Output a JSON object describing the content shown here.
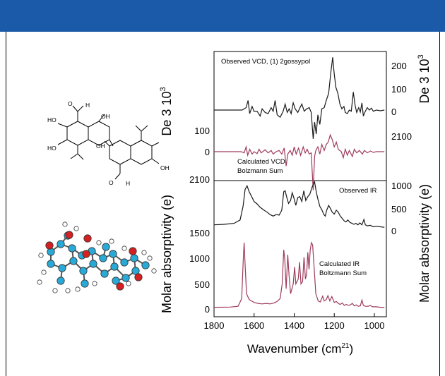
{
  "colors": {
    "banner": "#1a5aa8",
    "observed": "#1a1a1a",
    "calculated": "#9e3b5a",
    "atom_carbon": "#29a9d6",
    "atom_oxygen": "#d42020",
    "atom_hydrogen": "#ffffff"
  },
  "molecule": {
    "structure_atom_labels": [
      "HO",
      "HO",
      "O",
      "H",
      "OH",
      "OH",
      "OH",
      "O",
      "H"
    ]
  },
  "chart_data": {
    "type": "line",
    "x_axis": {
      "label": "Wavenumber (cm",
      "label_sup": "21",
      "label_close": ")",
      "ticks": [
        "1800",
        "1600",
        "1400",
        "1200",
        "1000"
      ],
      "range": [
        1800,
        940
      ],
      "reversed": true
    },
    "left_axes": {
      "vcd_label": "De 3 10",
      "vcd_label_sup": "3",
      "vcd_ticks": [
        "100",
        "0",
        "2100"
      ],
      "ir_label": "Molar absorptivity (e)",
      "ir_ticks": [
        "1500",
        "1000",
        "500",
        "0"
      ]
    },
    "right_axes": {
      "vcd_label": "De 3 10",
      "vcd_label_sup": "3",
      "vcd_ticks": [
        "200",
        "100",
        "0",
        "2100"
      ],
      "ir_label": "Molar absorptivity (e)",
      "ir_ticks": [
        "1000",
        "500",
        "0"
      ]
    },
    "panels": [
      {
        "name": "Observed VCD, (1) 2gossypol",
        "points": [
          [
            1800,
            0
          ],
          [
            1660,
            0
          ],
          [
            1640,
            10
          ],
          [
            1630,
            40
          ],
          [
            1622,
            -15
          ],
          [
            1610,
            15
          ],
          [
            1600,
            -6
          ],
          [
            1585,
            -5
          ],
          [
            1570,
            -25
          ],
          [
            1560,
            5
          ],
          [
            1545,
            -10
          ],
          [
            1530,
            -15
          ],
          [
            1515,
            10
          ],
          [
            1505,
            -5
          ],
          [
            1495,
            40
          ],
          [
            1485,
            -20
          ],
          [
            1470,
            -30
          ],
          [
            1455,
            -5
          ],
          [
            1445,
            25
          ],
          [
            1435,
            -10
          ],
          [
            1425,
            5
          ],
          [
            1415,
            -15
          ],
          [
            1405,
            30
          ],
          [
            1395,
            5
          ],
          [
            1382,
            -10
          ],
          [
            1372,
            8
          ],
          [
            1362,
            25
          ],
          [
            1350,
            -5
          ],
          [
            1338,
            5
          ],
          [
            1325,
            10
          ],
          [
            1315,
            -10
          ],
          [
            1305,
            -120
          ],
          [
            1298,
            -50
          ],
          [
            1290,
            -100
          ],
          [
            1282,
            -20
          ],
          [
            1272,
            -60
          ],
          [
            1262,
            5
          ],
          [
            1250,
            10
          ],
          [
            1240,
            40
          ],
          [
            1228,
            70
          ],
          [
            1218,
            150
          ],
          [
            1208,
            220
          ],
          [
            1200,
            150
          ],
          [
            1192,
            95
          ],
          [
            1182,
            70
          ],
          [
            1172,
            25
          ],
          [
            1162,
            5
          ],
          [
            1152,
            15
          ],
          [
            1145,
            -10
          ],
          [
            1135,
            -15
          ],
          [
            1125,
            0
          ],
          [
            1115,
            -5
          ],
          [
            1105,
            75
          ],
          [
            1096,
            20
          ],
          [
            1088,
            -10
          ],
          [
            1078,
            10
          ],
          [
            1070,
            -8
          ],
          [
            1062,
            30
          ],
          [
            1055,
            -25
          ],
          [
            1045,
            -5
          ],
          [
            1035,
            10
          ],
          [
            1025,
            0
          ],
          [
            1015,
            8
          ],
          [
            1005,
            -5
          ],
          [
            990,
            0
          ],
          [
            970,
            -3
          ],
          [
            950,
            0
          ]
        ]
      },
      {
        "name": "Calculated VCD Bolzmann Sum",
        "points": [
          [
            1800,
            0
          ],
          [
            1665,
            0
          ],
          [
            1650,
            -5
          ],
          [
            1640,
            20
          ],
          [
            1632,
            -15
          ],
          [
            1622,
            10
          ],
          [
            1610,
            -10
          ],
          [
            1600,
            0
          ],
          [
            1585,
            -8
          ],
          [
            1575,
            10
          ],
          [
            1565,
            -5
          ],
          [
            1545,
            8
          ],
          [
            1530,
            -5
          ],
          [
            1515,
            5
          ],
          [
            1505,
            -10
          ],
          [
            1490,
            0
          ],
          [
            1475,
            5
          ],
          [
            1462,
            -10
          ],
          [
            1450,
            15
          ],
          [
            1440,
            -60
          ],
          [
            1432,
            -10
          ],
          [
            1420,
            5
          ],
          [
            1410,
            -15
          ],
          [
            1400,
            20
          ],
          [
            1390,
            -10
          ],
          [
            1378,
            15
          ],
          [
            1368,
            -15
          ],
          [
            1355,
            20
          ],
          [
            1345,
            -5
          ],
          [
            1335,
            10
          ],
          [
            1325,
            -10
          ],
          [
            1315,
            -5
          ],
          [
            1305,
            -160
          ],
          [
            1298,
            -20
          ],
          [
            1292,
            5
          ],
          [
            1282,
            20
          ],
          [
            1272,
            -10
          ],
          [
            1262,
            30
          ],
          [
            1250,
            5
          ],
          [
            1240,
            30
          ],
          [
            1230,
            40
          ],
          [
            1220,
            70
          ],
          [
            1210,
            50
          ],
          [
            1200,
            20
          ],
          [
            1190,
            40
          ],
          [
            1180,
            10
          ],
          [
            1165,
            0
          ],
          [
            1155,
            -25
          ],
          [
            1145,
            10
          ],
          [
            1135,
            -15
          ],
          [
            1125,
            5
          ],
          [
            1110,
            -20
          ],
          [
            1100,
            10
          ],
          [
            1088,
            -5
          ],
          [
            1075,
            5
          ],
          [
            1060,
            -10
          ],
          [
            1050,
            5
          ],
          [
            1035,
            -5
          ],
          [
            1020,
            3
          ],
          [
            1005,
            -3
          ],
          [
            990,
            0
          ],
          [
            950,
            0
          ]
        ]
      },
      {
        "name": "Observed IR",
        "points": [
          [
            1800,
            120
          ],
          [
            1750,
            130
          ],
          [
            1700,
            150
          ],
          [
            1670,
            220
          ],
          [
            1655,
            500
          ],
          [
            1645,
            850
          ],
          [
            1635,
            920
          ],
          [
            1625,
            800
          ],
          [
            1612,
            700
          ],
          [
            1600,
            600
          ],
          [
            1585,
            550
          ],
          [
            1570,
            480
          ],
          [
            1550,
            420
          ],
          [
            1535,
            380
          ],
          [
            1520,
            330
          ],
          [
            1505,
            300
          ],
          [
            1490,
            330
          ],
          [
            1475,
            320
          ],
          [
            1462,
            420
          ],
          [
            1452,
            800
          ],
          [
            1445,
            820
          ],
          [
            1438,
            700
          ],
          [
            1428,
            560
          ],
          [
            1418,
            620
          ],
          [
            1410,
            780
          ],
          [
            1400,
            650
          ],
          [
            1392,
            520
          ],
          [
            1382,
            680
          ],
          [
            1372,
            700
          ],
          [
            1362,
            600
          ],
          [
            1352,
            820
          ],
          [
            1342,
            620
          ],
          [
            1332,
            700
          ],
          [
            1322,
            750
          ],
          [
            1312,
            880
          ],
          [
            1305,
            950
          ],
          [
            1298,
            1000
          ],
          [
            1290,
            800
          ],
          [
            1282,
            650
          ],
          [
            1272,
            500
          ],
          [
            1262,
            430
          ],
          [
            1252,
            330
          ],
          [
            1245,
            300
          ],
          [
            1238,
            420
          ],
          [
            1228,
            520
          ],
          [
            1220,
            460
          ],
          [
            1210,
            380
          ],
          [
            1200,
            340
          ],
          [
            1190,
            420
          ],
          [
            1180,
            380
          ],
          [
            1170,
            300
          ],
          [
            1160,
            250
          ],
          [
            1150,
            200
          ],
          [
            1142,
            180
          ],
          [
            1132,
            220
          ],
          [
            1122,
            170
          ],
          [
            1112,
            150
          ],
          [
            1102,
            130
          ],
          [
            1092,
            150
          ],
          [
            1082,
            120
          ],
          [
            1072,
            160
          ],
          [
            1062,
            120
          ],
          [
            1052,
            230
          ],
          [
            1045,
            120
          ],
          [
            1035,
            100
          ],
          [
            1020,
            110
          ],
          [
            1005,
            80
          ],
          [
            990,
            90
          ],
          [
            970,
            80
          ],
          [
            950,
            70
          ]
        ]
      },
      {
        "name": "Calculated IR Boltzmann Sum",
        "points": [
          [
            1800,
            20
          ],
          [
            1720,
            25
          ],
          [
            1680,
            40
          ],
          [
            1662,
            200
          ],
          [
            1655,
            900
          ],
          [
            1650,
            1350
          ],
          [
            1645,
            900
          ],
          [
            1638,
            300
          ],
          [
            1625,
            180
          ],
          [
            1600,
            120
          ],
          [
            1580,
            100
          ],
          [
            1560,
            90
          ],
          [
            1540,
            100
          ],
          [
            1520,
            90
          ],
          [
            1500,
            110
          ],
          [
            1485,
            140
          ],
          [
            1470,
            200
          ],
          [
            1460,
            500
          ],
          [
            1452,
            1200
          ],
          [
            1447,
            1000
          ],
          [
            1440,
            400
          ],
          [
            1432,
            1100
          ],
          [
            1426,
            700
          ],
          [
            1418,
            300
          ],
          [
            1405,
            500
          ],
          [
            1398,
            850
          ],
          [
            1392,
            500
          ],
          [
            1380,
            600
          ],
          [
            1373,
            950
          ],
          [
            1366,
            500
          ],
          [
            1358,
            550
          ],
          [
            1351,
            1050
          ],
          [
            1344,
            600
          ],
          [
            1338,
            700
          ],
          [
            1332,
            1150
          ],
          [
            1326,
            800
          ],
          [
            1320,
            1200
          ],
          [
            1314,
            1350
          ],
          [
            1308,
            1300
          ],
          [
            1300,
            800
          ],
          [
            1292,
            300
          ],
          [
            1280,
            150
          ],
          [
            1270,
            130
          ],
          [
            1258,
            250
          ],
          [
            1250,
            150
          ],
          [
            1240,
            180
          ],
          [
            1232,
            260
          ],
          [
            1222,
            150
          ],
          [
            1212,
            240
          ],
          [
            1200,
            120
          ],
          [
            1190,
            140
          ],
          [
            1180,
            100
          ],
          [
            1170,
            80
          ],
          [
            1160,
            110
          ],
          [
            1150,
            60
          ],
          [
            1140,
            80
          ],
          [
            1130,
            60
          ],
          [
            1120,
            70
          ],
          [
            1110,
            100
          ],
          [
            1100,
            50
          ],
          [
            1090,
            70
          ],
          [
            1080,
            40
          ],
          [
            1070,
            50
          ],
          [
            1062,
            170
          ],
          [
            1055,
            60
          ],
          [
            1045,
            40
          ],
          [
            1030,
            40
          ],
          [
            1020,
            60
          ],
          [
            1010,
            30
          ],
          [
            990,
            30
          ],
          [
            970,
            20
          ],
          [
            950,
            20
          ]
        ]
      }
    ]
  }
}
